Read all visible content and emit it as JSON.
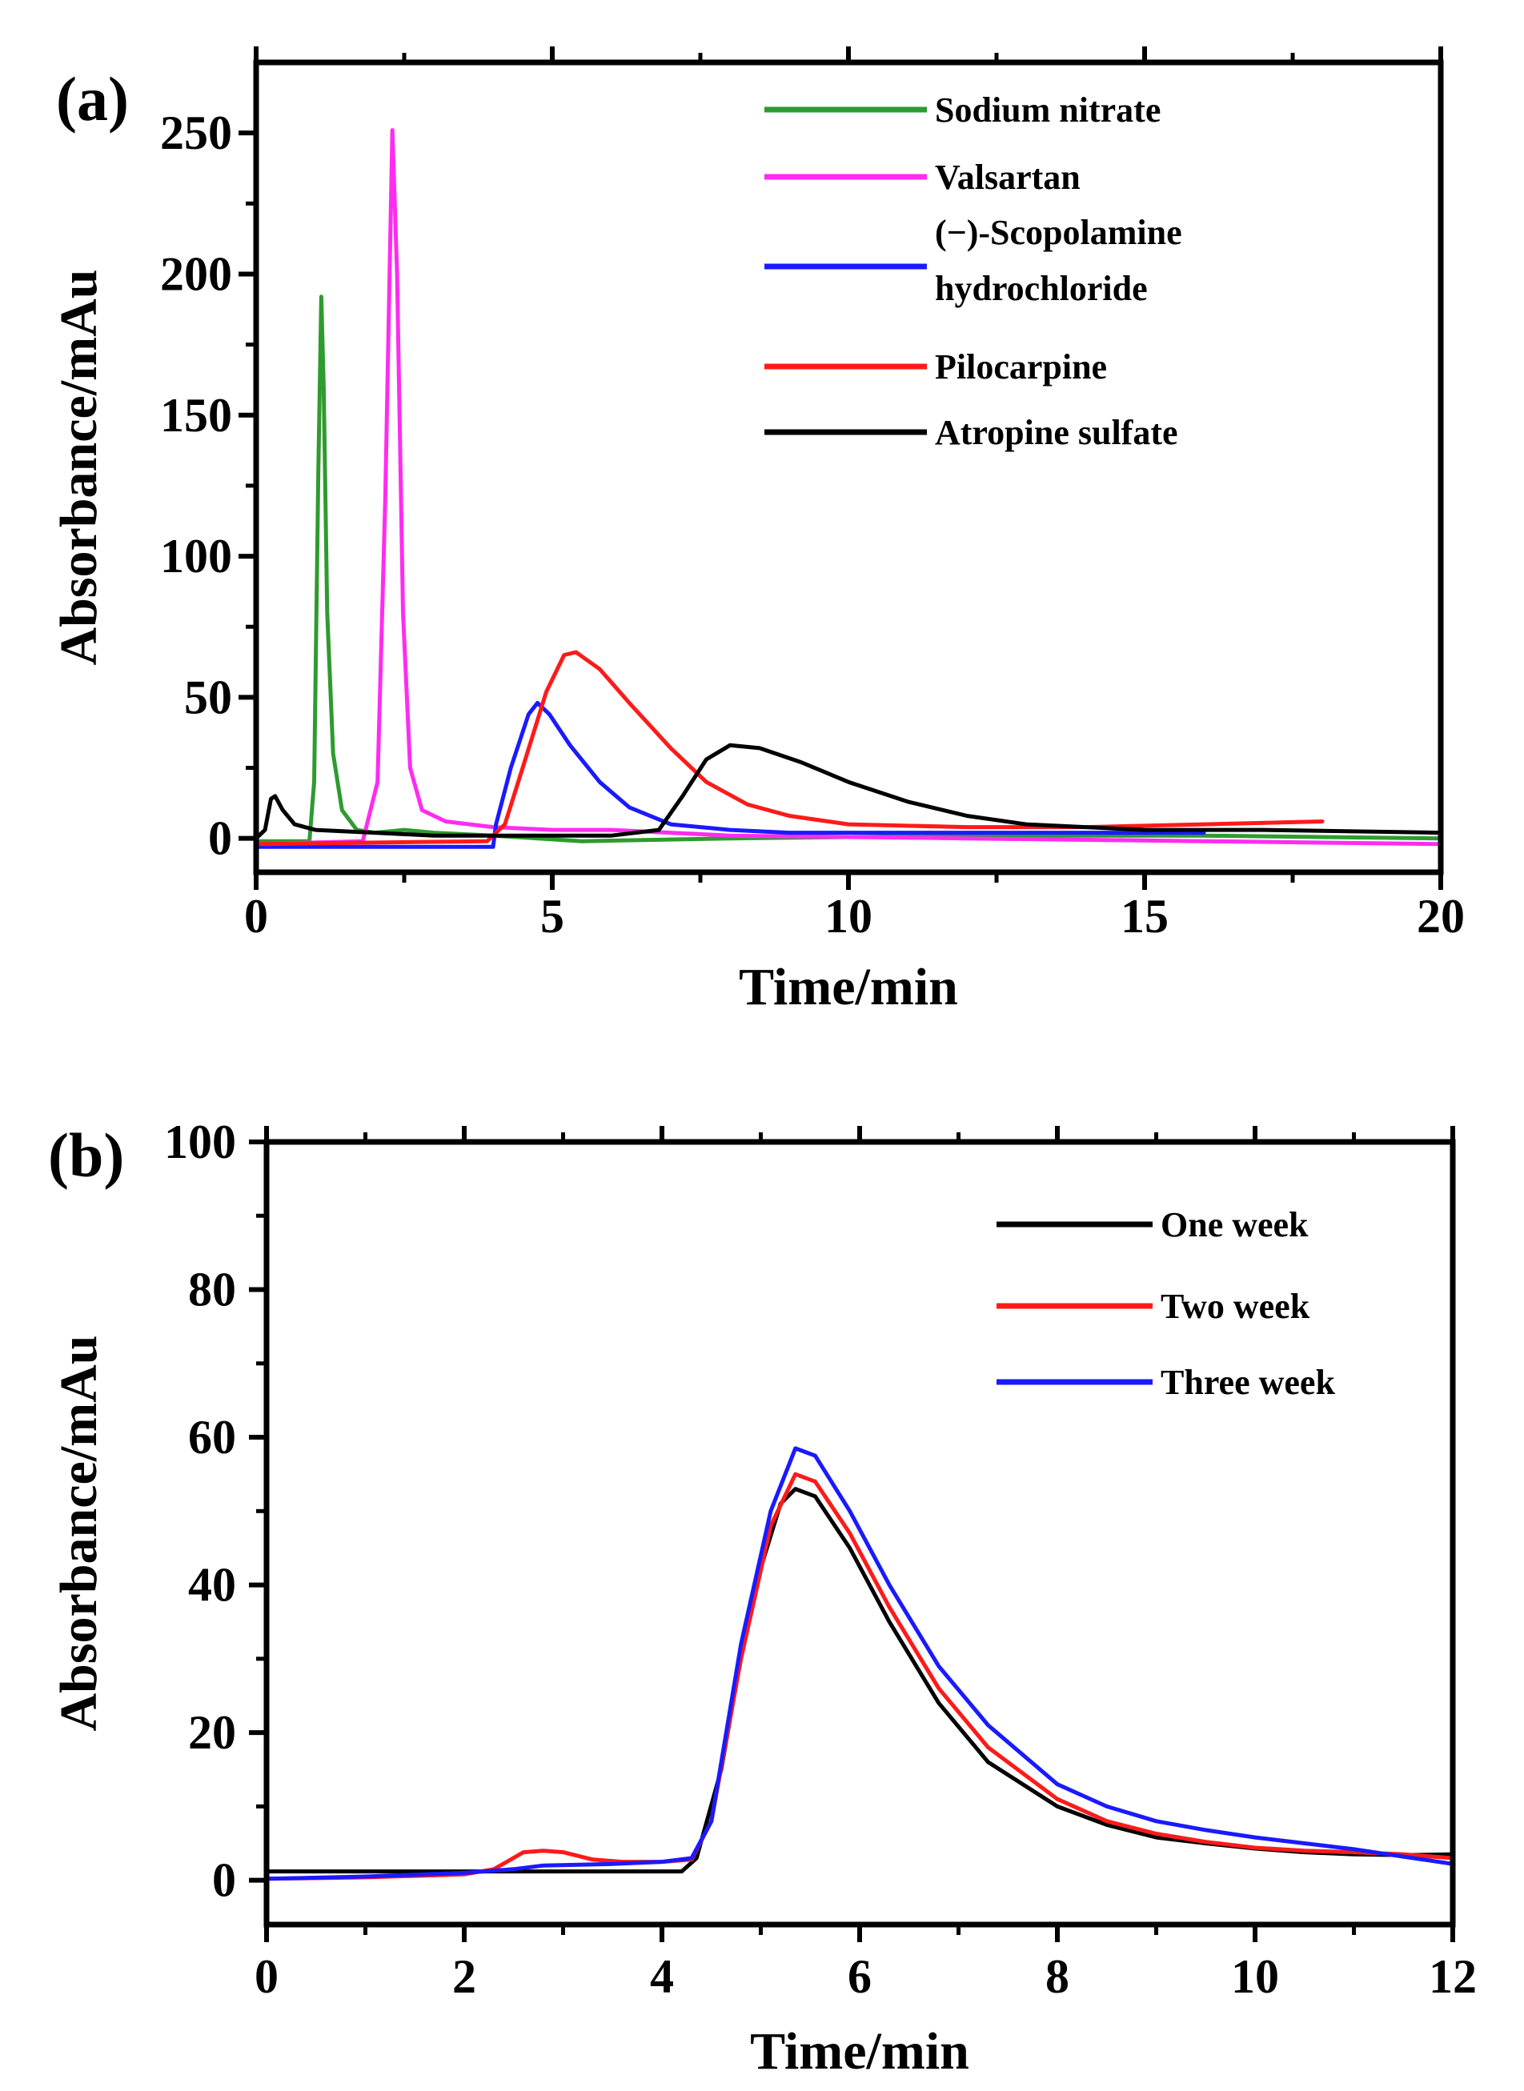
{
  "charts": [
    {
      "panel_label": "(a)",
      "type": "line",
      "xlabel": "Time/min",
      "ylabel": "Absorbance/mAu",
      "xlim": [
        0,
        20
      ],
      "ylim": [
        -12,
        275
      ],
      "x_ticks": [
        0,
        5,
        10,
        15,
        20
      ],
      "y_ticks": [
        0,
        50,
        100,
        150,
        200,
        250
      ],
      "legend_position": "top-right",
      "series": [
        {
          "name": "Sodium nitrate",
          "color": "#2e9b2e",
          "points": [
            [
              0,
              -1
            ],
            [
              0.9,
              -1
            ],
            [
              0.98,
              20
            ],
            [
              1.05,
              130
            ],
            [
              1.1,
              192
            ],
            [
              1.14,
              160
            ],
            [
              1.2,
              80
            ],
            [
              1.3,
              30
            ],
            [
              1.45,
              10
            ],
            [
              1.7,
              3
            ],
            [
              2,
              2
            ],
            [
              2.5,
              3
            ],
            [
              3,
              2
            ],
            [
              4,
              1
            ],
            [
              5.5,
              -1
            ],
            [
              8,
              0
            ],
            [
              12,
              1
            ],
            [
              16,
              1
            ],
            [
              20,
              0
            ]
          ]
        },
        {
          "name": "Valsartan",
          "color": "#ff2cf0",
          "points": [
            [
              0,
              -2
            ],
            [
              1.8,
              -1
            ],
            [
              2.05,
              20
            ],
            [
              2.18,
              120
            ],
            [
              2.3,
              251
            ],
            [
              2.38,
              200
            ],
            [
              2.48,
              80
            ],
            [
              2.6,
              25
            ],
            [
              2.8,
              10
            ],
            [
              3.2,
              6
            ],
            [
              4,
              4
            ],
            [
              5,
              3
            ],
            [
              6,
              3
            ],
            [
              8,
              1
            ],
            [
              12,
              0
            ],
            [
              16,
              -1
            ],
            [
              20,
              -2
            ]
          ]
        },
        {
          "name": "(−)-Scopolamine hydrochloride",
          "color": "#1a1aff",
          "points": [
            [
              0,
              -3
            ],
            [
              4.0,
              -3
            ],
            [
              4.05,
              5
            ],
            [
              4.3,
              25
            ],
            [
              4.6,
              44
            ],
            [
              4.75,
              48
            ],
            [
              4.95,
              44
            ],
            [
              5.3,
              33
            ],
            [
              5.8,
              20
            ],
            [
              6.3,
              11
            ],
            [
              7,
              5
            ],
            [
              8,
              3
            ],
            [
              9,
              2
            ],
            [
              10,
              2
            ],
            [
              13,
              2
            ],
            [
              16,
              2
            ]
          ]
        },
        {
          "name": "Pilocarpine",
          "color": "#ff1a1a",
          "points": [
            [
              0,
              -2
            ],
            [
              3.9,
              -1
            ],
            [
              4.2,
              5
            ],
            [
              4.5,
              25
            ],
            [
              4.9,
              52
            ],
            [
              5.2,
              65
            ],
            [
              5.4,
              66
            ],
            [
              5.8,
              60
            ],
            [
              6.3,
              48
            ],
            [
              7,
              32
            ],
            [
              7.6,
              20
            ],
            [
              8.3,
              12
            ],
            [
              9,
              8
            ],
            [
              10,
              5
            ],
            [
              12,
              4
            ],
            [
              14,
              4
            ],
            [
              16,
              5
            ],
            [
              18,
              6
            ]
          ]
        },
        {
          "name": "Atropine sulfate",
          "color": "#000000",
          "points": [
            [
              0,
              0
            ],
            [
              0.15,
              3
            ],
            [
              0.25,
              14
            ],
            [
              0.32,
              15
            ],
            [
              0.45,
              10
            ],
            [
              0.65,
              5
            ],
            [
              1,
              3
            ],
            [
              2,
              2
            ],
            [
              3,
              1
            ],
            [
              4,
              1
            ],
            [
              6,
              1
            ],
            [
              6.8,
              3
            ],
            [
              7.2,
              15
            ],
            [
              7.6,
              28
            ],
            [
              8,
              33
            ],
            [
              8.5,
              32
            ],
            [
              9.2,
              27
            ],
            [
              10,
              20
            ],
            [
              11,
              13
            ],
            [
              12,
              8
            ],
            [
              13,
              5
            ],
            [
              14,
              4
            ],
            [
              15,
              3
            ],
            [
              17,
              3
            ],
            [
              20,
              2
            ]
          ]
        }
      ]
    },
    {
      "panel_label": "(b)",
      "type": "line",
      "xlabel": "Time/min",
      "ylabel": "Absorbance/mAu",
      "xlim": [
        0,
        12
      ],
      "ylim": [
        -6,
        100
      ],
      "x_ticks": [
        0,
        2,
        4,
        6,
        8,
        10,
        12
      ],
      "y_ticks": [
        0,
        20,
        40,
        60,
        80,
        100
      ],
      "legend_position": "top-right",
      "series": [
        {
          "name": "One week",
          "color": "#000000",
          "points": [
            [
              0,
              1.2
            ],
            [
              2,
              1.2
            ],
            [
              4,
              1.2
            ],
            [
              4.2,
              1.2
            ],
            [
              4.35,
              3
            ],
            [
              4.6,
              15
            ],
            [
              4.9,
              38
            ],
            [
              5.2,
              51
            ],
            [
              5.35,
              53
            ],
            [
              5.55,
              52
            ],
            [
              5.9,
              45
            ],
            [
              6.3,
              35
            ],
            [
              6.8,
              24
            ],
            [
              7.3,
              16
            ],
            [
              8,
              10
            ],
            [
              8.5,
              7.5
            ],
            [
              9,
              5.8
            ],
            [
              9.5,
              5
            ],
            [
              10,
              4.3
            ],
            [
              10.5,
              3.8
            ],
            [
              11,
              3.5
            ],
            [
              11.5,
              3.4
            ],
            [
              12,
              3.5
            ]
          ]
        },
        {
          "name": "Two week",
          "color": "#ff1a1a",
          "points": [
            [
              0,
              0.2
            ],
            [
              1,
              0.4
            ],
            [
              2,
              0.8
            ],
            [
              2.3,
              1.5
            ],
            [
              2.6,
              3.8
            ],
            [
              2.8,
              4
            ],
            [
              3,
              3.8
            ],
            [
              3.3,
              2.8
            ],
            [
              3.6,
              2.5
            ],
            [
              4,
              2.5
            ],
            [
              4.3,
              2.8
            ],
            [
              4.5,
              8
            ],
            [
              4.8,
              30
            ],
            [
              5.1,
              48
            ],
            [
              5.35,
              55
            ],
            [
              5.55,
              54
            ],
            [
              5.9,
              47
            ],
            [
              6.3,
              37
            ],
            [
              6.8,
              26
            ],
            [
              7.3,
              18
            ],
            [
              8,
              11
            ],
            [
              8.5,
              8
            ],
            [
              9,
              6.3
            ],
            [
              9.5,
              5.2
            ],
            [
              10,
              4.4
            ],
            [
              10.5,
              4
            ],
            [
              11,
              3.8
            ],
            [
              11.5,
              3.5
            ],
            [
              12,
              3
            ]
          ]
        },
        {
          "name": "Three week",
          "color": "#1a1aff",
          "points": [
            [
              0,
              0.2
            ],
            [
              1,
              0.5
            ],
            [
              2,
              1
            ],
            [
              2.5,
              1.5
            ],
            [
              2.8,
              2
            ],
            [
              3.5,
              2.2
            ],
            [
              4,
              2.5
            ],
            [
              4.3,
              3
            ],
            [
              4.5,
              8
            ],
            [
              4.8,
              32
            ],
            [
              5.1,
              50
            ],
            [
              5.35,
              58.5
            ],
            [
              5.55,
              57.5
            ],
            [
              5.9,
              50
            ],
            [
              6.3,
              40
            ],
            [
              6.8,
              29
            ],
            [
              7.3,
              21
            ],
            [
              8,
              13
            ],
            [
              8.5,
              10
            ],
            [
              9,
              8
            ],
            [
              9.5,
              6.8
            ],
            [
              10,
              5.8
            ],
            [
              10.5,
              5
            ],
            [
              11,
              4.2
            ],
            [
              11.5,
              3.2
            ],
            [
              12,
              2.2
            ]
          ]
        }
      ]
    }
  ]
}
